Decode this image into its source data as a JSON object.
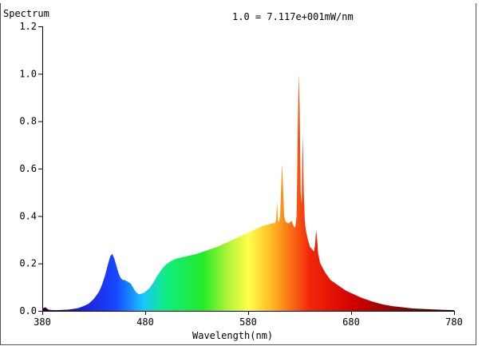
{
  "chart_data": {
    "type": "area",
    "title": "Spectrum",
    "annotation": "1.0 = 7.117e+001mW/nm",
    "xlabel": "Wavelength(nm)",
    "ylabel": "",
    "xlim": [
      380,
      780
    ],
    "ylim": [
      0,
      1.2
    ],
    "x_ticks": [
      "380",
      "480",
      "580",
      "680",
      "780"
    ],
    "y_ticks": [
      "0.0",
      "0.2",
      "0.4",
      "0.6",
      "0.8",
      "1.0",
      "1.2"
    ],
    "grid": false,
    "legend": "none",
    "fill": "wavelength-colored spectrum",
    "series": [
      {
        "x": [
          380,
          383,
          386,
          390,
          395,
          400,
          405,
          410,
          415,
          420,
          425,
          430,
          435,
          438,
          441,
          444,
          446,
          448,
          450,
          452,
          454,
          456,
          458,
          460,
          462,
          464,
          466,
          468,
          470,
          472,
          474,
          476,
          478,
          480,
          484,
          488,
          492,
          496,
          500,
          505,
          510,
          515,
          520,
          525,
          530,
          540,
          550,
          560,
          570,
          580,
          590,
          595,
          600,
          604,
          606,
          607,
          608,
          609,
          610,
          611,
          612,
          613,
          614,
          615,
          616,
          618,
          620,
          622,
          624,
          625,
          626,
          627,
          628,
          629,
          630,
          631,
          632,
          633,
          634,
          635,
          636,
          638,
          640,
          642,
          644,
          645,
          646,
          647,
          648,
          650,
          655,
          660,
          665,
          670,
          675,
          680,
          690,
          700,
          710,
          720,
          730,
          740,
          750,
          760,
          770,
          780
        ],
        "y": [
          0.01,
          0.015,
          0.005,
          0.003,
          0.003,
          0.004,
          0.005,
          0.008,
          0.012,
          0.02,
          0.03,
          0.05,
          0.08,
          0.11,
          0.15,
          0.2,
          0.23,
          0.24,
          0.22,
          0.19,
          0.16,
          0.14,
          0.13,
          0.13,
          0.125,
          0.12,
          0.115,
          0.1,
          0.085,
          0.075,
          0.07,
          0.072,
          0.075,
          0.08,
          0.095,
          0.12,
          0.15,
          0.175,
          0.195,
          0.21,
          0.22,
          0.225,
          0.23,
          0.235,
          0.24,
          0.255,
          0.27,
          0.29,
          0.31,
          0.33,
          0.35,
          0.36,
          0.365,
          0.37,
          0.37,
          0.38,
          0.46,
          0.38,
          0.375,
          0.4,
          0.52,
          0.62,
          0.5,
          0.4,
          0.38,
          0.37,
          0.37,
          0.38,
          0.36,
          0.35,
          0.36,
          0.4,
          0.7,
          1.0,
          0.85,
          0.5,
          0.45,
          0.75,
          0.5,
          0.38,
          0.34,
          0.3,
          0.27,
          0.26,
          0.25,
          0.28,
          0.34,
          0.3,
          0.24,
          0.2,
          0.16,
          0.13,
          0.115,
          0.1,
          0.085,
          0.075,
          0.055,
          0.04,
          0.028,
          0.02,
          0.015,
          0.01,
          0.008,
          0.006,
          0.004,
          0.003
        ]
      }
    ]
  }
}
